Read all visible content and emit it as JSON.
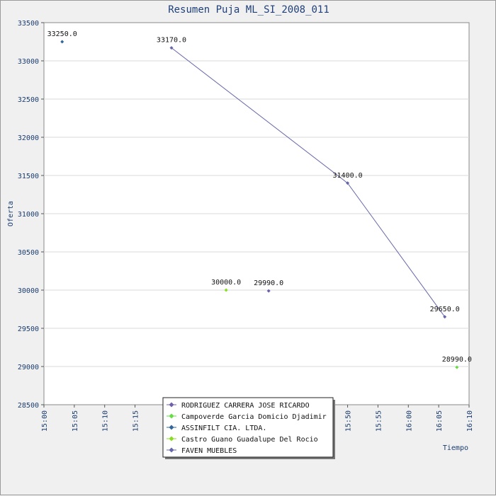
{
  "chart_data": {
    "type": "scatter",
    "title": "Resumen Puja ML_SI_2008_011",
    "xlabel": "Tiempo",
    "ylabel": "Oferta",
    "x_is_time": true,
    "xlim": [
      "15:00",
      "16:10"
    ],
    "ylim": [
      28500,
      33500
    ],
    "y_ticks": [
      28500,
      29000,
      29500,
      30000,
      30500,
      31000,
      31500,
      32000,
      32500,
      33000,
      33500
    ],
    "x_ticks": [
      "15:00",
      "15:05",
      "15:10",
      "15:15",
      "15:20",
      "15:25",
      "15:30",
      "15:35",
      "15:40",
      "15:45",
      "15:50",
      "15:55",
      "16:00",
      "16:05",
      "16:10"
    ],
    "grid": true,
    "legend": "bottom-center",
    "series": [
      {
        "name": "RODRIGUEZ CARRERA JOSE RICARDO",
        "color": "#7060a8",
        "line": false,
        "points": [
          {
            "x": "15:37",
            "y": 29990,
            "label": "29990.0"
          }
        ]
      },
      {
        "name": "Campoverde Garcia Domicio Djadimir",
        "color": "#66dd44",
        "line": false,
        "points": [
          {
            "x": "16:08",
            "y": 28990,
            "label": "28990.0"
          }
        ]
      },
      {
        "name": "ASSINFILT CIA. LTDA.",
        "color": "#336699",
        "line": false,
        "points": [
          {
            "x": "15:03",
            "y": 33250,
            "label": "33250.0"
          }
        ]
      },
      {
        "name": "Castro Guano Guadalupe Del Rocio",
        "color": "#88dd22",
        "line": false,
        "points": [
          {
            "x": "15:30",
            "y": 30000,
            "label": "30000.0"
          }
        ]
      },
      {
        "name": "FAVEN MUEBLES",
        "color": "#6666aa",
        "line": true,
        "points": [
          {
            "x": "15:21",
            "y": 33170,
            "label": "33170.0"
          },
          {
            "x": "15:50",
            "y": 31400,
            "label": "31400.0"
          },
          {
            "x": "16:06",
            "y": 29650,
            "label": "29650.0"
          }
        ]
      }
    ]
  }
}
